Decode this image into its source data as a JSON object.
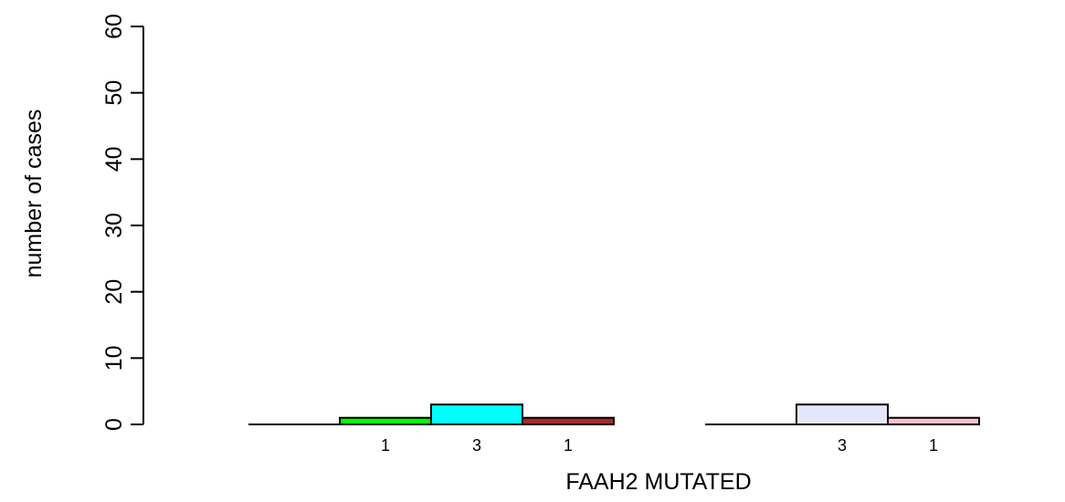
{
  "chart_data": {
    "type": "bar",
    "xlabel": "FAAH2 MUTATED",
    "ylabel": "number of cases",
    "ylim": [
      0,
      60
    ],
    "yticks": [
      0,
      10,
      20,
      30,
      40,
      50,
      60
    ],
    "grid": false,
    "legend": "none",
    "groups": [
      {
        "bars": [
          {
            "value": 0,
            "label": "",
            "color": "#ffffff"
          },
          {
            "value": 1,
            "label": "1",
            "color": "#00ff00"
          },
          {
            "value": 3,
            "label": "3",
            "color": "#00ffff"
          },
          {
            "value": 1,
            "label": "1",
            "color": "#a52a2a"
          }
        ]
      },
      {
        "bars": [
          {
            "value": 0,
            "label": "",
            "color": "#ffffff"
          },
          {
            "value": 3,
            "label": "3",
            "color": "#e6e6fa"
          },
          {
            "value": 1,
            "label": "1",
            "color": "#ffc0cb"
          }
        ]
      }
    ]
  }
}
